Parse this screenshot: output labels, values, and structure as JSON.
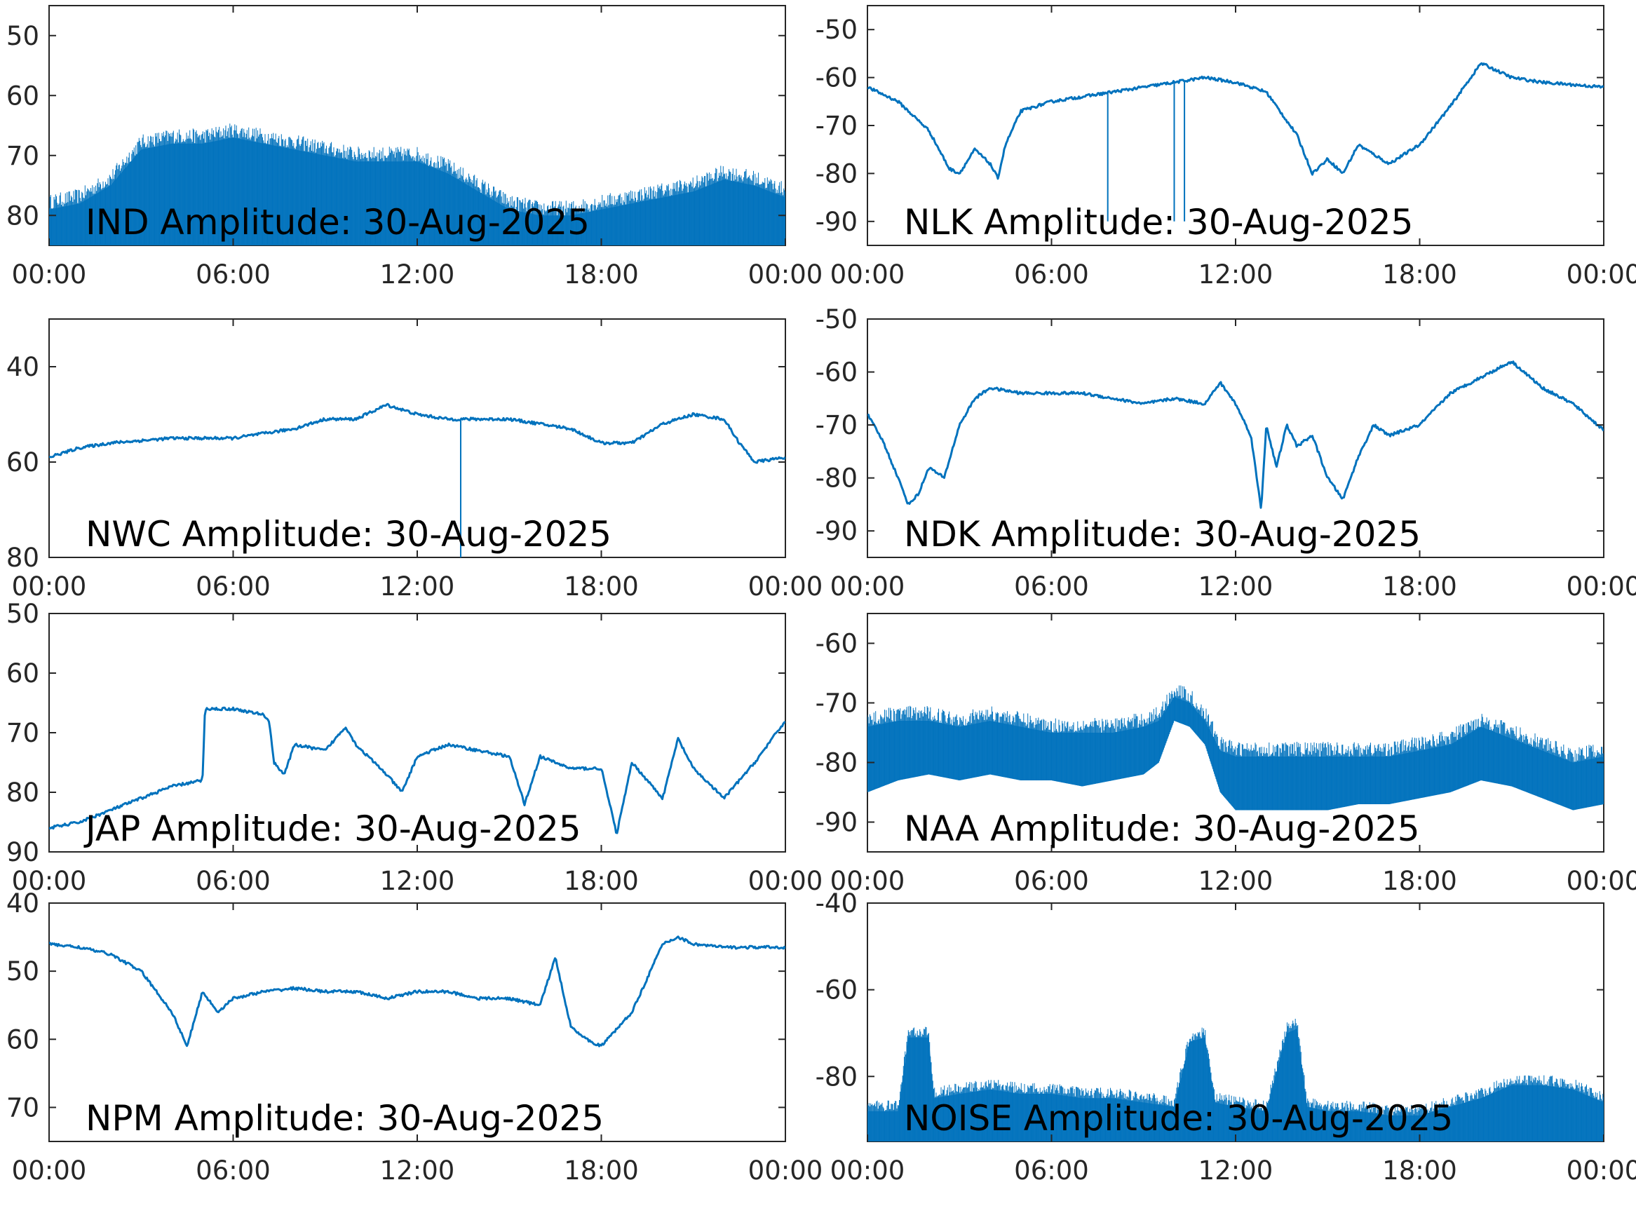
{
  "figure": {
    "line_color": "#0072BD",
    "axis_color": "#262626",
    "background": "#ffffff"
  },
  "chart_data": [
    {
      "type": "line",
      "title": "IND Amplitude: 30-Aug-2025",
      "x_ticks": [
        "00:00",
        "06:00",
        "12:00",
        "18:00",
        "00:00"
      ],
      "xlim": [
        "00:00",
        "24:00"
      ],
      "ylim": [
        -85,
        -45
      ],
      "y_ticks": [
        -50,
        -60,
        -70,
        -80
      ],
      "y_tick_labels": [
        "50",
        "60",
        "70",
        "80"
      ],
      "x": [
        "00:00",
        "01:00",
        "02:00",
        "03:00",
        "04:00",
        "05:00",
        "06:00",
        "07:00",
        "08:00",
        "09:00",
        "10:00",
        "11:00",
        "12:00",
        "13:00",
        "14:00",
        "15:00",
        "16:00",
        "17:00",
        "18:00",
        "19:00",
        "20:00",
        "21:00",
        "22:00",
        "23:00",
        "24:00"
      ],
      "y_upper": [
        -79,
        -78,
        -75,
        -69,
        -68,
        -68,
        -67,
        -68,
        -69,
        -70,
        -71,
        -71,
        -71,
        -73,
        -76,
        -79,
        -80,
        -80,
        -79,
        -78,
        -77,
        -76,
        -74,
        -75,
        -77
      ],
      "y_lower": [
        -85,
        -85,
        -85,
        -85,
        -85,
        -85,
        -85,
        -85,
        -85,
        -85,
        -85,
        -85,
        -85,
        -85,
        -85,
        -85,
        -85,
        -85,
        -85,
        -85,
        -85,
        -85,
        -85,
        -85,
        -85
      ],
      "grid": false
    },
    {
      "type": "line",
      "title": "NLK Amplitude: 30-Aug-2025",
      "x_ticks": [
        "00:00",
        "06:00",
        "12:00",
        "18:00",
        "00:00"
      ],
      "xlim": [
        "00:00",
        "24:00"
      ],
      "ylim": [
        -95,
        -45
      ],
      "y_ticks": [
        -50,
        -60,
        -70,
        -80,
        -90
      ],
      "y_tick_labels": [
        "-50",
        "-60",
        "-70",
        "-80",
        "-90"
      ],
      "x": [
        "00:00",
        "01:00",
        "02:00",
        "02:40",
        "03:00",
        "03:30",
        "04:00",
        "04:15",
        "04:30",
        "05:00",
        "06:00",
        "07:00",
        "08:00",
        "09:00",
        "10:00",
        "11:00",
        "12:00",
        "13:00",
        "14:00",
        "14:30",
        "15:00",
        "15:30",
        "16:00",
        "17:00",
        "18:00",
        "19:00",
        "20:00",
        "21:00",
        "22:00",
        "23:00",
        "24:00"
      ],
      "y": [
        -62,
        -65,
        -71,
        -79,
        -80,
        -75,
        -78,
        -81,
        -74,
        -67,
        -65,
        -64,
        -63,
        -62,
        -61,
        -60,
        -61,
        -63,
        -72,
        -80,
        -77,
        -80,
        -74,
        -78,
        -74,
        -66,
        -57,
        -60,
        -61,
        -61.5,
        -62
      ],
      "spikes": [
        {
          "x": "07:50",
          "y": -90
        },
        {
          "x": "10:00",
          "y": -90
        },
        {
          "x": "10:20",
          "y": -90
        }
      ],
      "grid": false
    },
    {
      "type": "line",
      "title": "NWC Amplitude: 30-Aug-2025",
      "x_ticks": [
        "00:00",
        "06:00",
        "12:00",
        "18:00",
        "00:00"
      ],
      "xlim": [
        "00:00",
        "24:00"
      ],
      "ylim": [
        -80,
        -30
      ],
      "y_ticks": [
        -40,
        -60,
        -80
      ],
      "y_tick_labels": [
        "40",
        "60",
        "80"
      ],
      "x": [
        "00:00",
        "01:00",
        "02:00",
        "03:00",
        "04:00",
        "05:00",
        "06:00",
        "07:00",
        "08:00",
        "09:00",
        "10:00",
        "11:00",
        "12:00",
        "13:00",
        "14:00",
        "15:00",
        "16:00",
        "17:00",
        "18:00",
        "19:00",
        "20:00",
        "21:00",
        "22:00",
        "22:30",
        "23:00",
        "24:00"
      ],
      "y": [
        -59,
        -57,
        -56,
        -55.5,
        -55,
        -55,
        -55,
        -54,
        -53,
        -51,
        -51,
        -48,
        -50,
        -51,
        -51,
        -51,
        -52,
        -53,
        -56,
        -56,
        -52,
        -50,
        -51,
        -56,
        -60,
        -59
      ],
      "spikes": [
        {
          "x": "13:25",
          "y": -80
        }
      ],
      "grid": false
    },
    {
      "type": "line",
      "title": "NDK Amplitude: 30-Aug-2025",
      "x_ticks": [
        "00:00",
        "06:00",
        "12:00",
        "18:00",
        "00:00"
      ],
      "xlim": [
        "00:00",
        "24:00"
      ],
      "ylim": [
        -95,
        -50
      ],
      "y_ticks": [
        -50,
        -60,
        -70,
        -80,
        -90
      ],
      "y_tick_labels": [
        "-50",
        "-60",
        "-70",
        "-80",
        "-90"
      ],
      "x": [
        "00:00",
        "00:30",
        "01:00",
        "01:20",
        "01:40",
        "02:00",
        "02:30",
        "03:00",
        "03:30",
        "04:00",
        "05:00",
        "06:00",
        "07:00",
        "08:00",
        "09:00",
        "10:00",
        "11:00",
        "11:30",
        "12:00",
        "12:30",
        "12:50",
        "13:00",
        "13:20",
        "13:40",
        "14:00",
        "14:30",
        "15:00",
        "15:30",
        "16:00",
        "16:30",
        "17:00",
        "18:00",
        "19:00",
        "20:00",
        "21:00",
        "22:00",
        "23:00",
        "24:00"
      ],
      "y": [
        -68,
        -73,
        -80,
        -85,
        -83,
        -78,
        -80,
        -70,
        -65,
        -63,
        -64,
        -64,
        -64,
        -65,
        -66,
        -65,
        -66,
        -62,
        -66,
        -72,
        -86,
        -70,
        -78,
        -70,
        -74,
        -72,
        -80,
        -84,
        -76,
        -70,
        -72,
        -70,
        -64,
        -61,
        -58,
        -63,
        -66,
        -71
      ],
      "grid": false
    },
    {
      "type": "line",
      "title": "JAP Amplitude: 30-Aug-2025",
      "x_ticks": [
        "00:00",
        "06:00",
        "12:00",
        "18:00",
        "00:00"
      ],
      "xlim": [
        "00:00",
        "24:00"
      ],
      "ylim": [
        -90,
        -50
      ],
      "y_ticks": [
        -50,
        -60,
        -70,
        -80,
        -90
      ],
      "y_tick_labels": [
        "50",
        "60",
        "70",
        "80",
        "90"
      ],
      "x": [
        "00:00",
        "01:00",
        "02:00",
        "03:00",
        "04:00",
        "05:00",
        "05:05",
        "06:00",
        "07:00",
        "07:10",
        "07:20",
        "07:40",
        "08:00",
        "09:00",
        "09:40",
        "10:00",
        "11:00",
        "11:30",
        "12:00",
        "13:00",
        "14:00",
        "15:00",
        "15:30",
        "16:00",
        "17:00",
        "18:00",
        "18:30",
        "19:00",
        "20:00",
        "20:30",
        "21:00",
        "22:00",
        "23:00",
        "24:00"
      ],
      "y": [
        -86,
        -85,
        -83,
        -81,
        -79,
        -78,
        -66,
        -66,
        -67,
        -68,
        -75,
        -77,
        -72,
        -73,
        -69,
        -72,
        -77,
        -80,
        -74,
        -72,
        -73,
        -74,
        -82,
        -74,
        -76,
        -76,
        -87,
        -75,
        -81,
        -71,
        -76,
        -81,
        -75,
        -68
      ],
      "grid": false
    },
    {
      "type": "line",
      "title": "NAA Amplitude: 30-Aug-2025",
      "x_ticks": [
        "00:00",
        "06:00",
        "12:00",
        "18:00",
        "00:00"
      ],
      "xlim": [
        "00:00",
        "24:00"
      ],
      "ylim": [
        -95,
        -55
      ],
      "y_ticks": [
        -60,
        -70,
        -80,
        -90
      ],
      "y_tick_labels": [
        "-60",
        "-70",
        "-80",
        "-90"
      ],
      "x": [
        "00:00",
        "01:00",
        "02:00",
        "03:00",
        "04:00",
        "05:00",
        "06:00",
        "07:00",
        "08:00",
        "09:00",
        "09:30",
        "10:00",
        "10:30",
        "11:00",
        "11:30",
        "12:00",
        "13:00",
        "14:00",
        "15:00",
        "16:00",
        "17:00",
        "18:00",
        "19:00",
        "20:00",
        "21:00",
        "22:00",
        "23:00",
        "24:00"
      ],
      "y_upper": [
        -74,
        -73,
        -73,
        -74,
        -73,
        -74,
        -75,
        -75,
        -75,
        -74,
        -73,
        -69,
        -70,
        -73,
        -78,
        -79,
        -79,
        -79,
        -79,
        -79,
        -79,
        -78,
        -77,
        -74,
        -76,
        -78,
        -80,
        -79
      ],
      "y_lower": [
        -85,
        -83,
        -82,
        -83,
        -82,
        -83,
        -83,
        -84,
        -83,
        -82,
        -80,
        -73,
        -74,
        -77,
        -85,
        -88,
        -88,
        -88,
        -88,
        -87,
        -87,
        -86,
        -85,
        -83,
        -84,
        -86,
        -88,
        -87
      ],
      "grid": false
    },
    {
      "type": "line",
      "title": "NPM Amplitude: 30-Aug-2025",
      "x_ticks": [
        "00:00",
        "06:00",
        "12:00",
        "18:00",
        "00:00"
      ],
      "xlim": [
        "00:00",
        "24:00"
      ],
      "ylim": [
        -75,
        -40
      ],
      "y_ticks": [
        -40,
        -50,
        -60,
        -70
      ],
      "y_tick_labels": [
        "40",
        "50",
        "60",
        "70"
      ],
      "x": [
        "00:00",
        "01:00",
        "02:00",
        "03:00",
        "04:00",
        "04:30",
        "05:00",
        "05:30",
        "06:00",
        "07:00",
        "08:00",
        "09:00",
        "10:00",
        "11:00",
        "12:00",
        "13:00",
        "14:00",
        "15:00",
        "16:00",
        "16:30",
        "17:00",
        "17:30",
        "18:00",
        "19:00",
        "20:00",
        "20:30",
        "21:00",
        "22:00",
        "23:00",
        "24:00"
      ],
      "y": [
        -46,
        -46.5,
        -47.5,
        -50,
        -56,
        -61,
        -53,
        -56,
        -54,
        -53,
        -52.5,
        -53,
        -53,
        -54,
        -53,
        -53,
        -54,
        -54,
        -55,
        -48,
        -58,
        -60,
        -61,
        -56,
        -46,
        -45,
        -46,
        -46.5,
        -46.5,
        -46.5
      ],
      "grid": false
    },
    {
      "type": "line",
      "title": "NOISE Amplitude: 30-Aug-2025",
      "x_ticks": [
        "00:00",
        "06:00",
        "12:00",
        "18:00",
        "00:00"
      ],
      "xlim": [
        "00:00",
        "24:00"
      ],
      "ylim": [
        -95,
        -40
      ],
      "y_ticks": [
        -40,
        -60,
        -80
      ],
      "y_tick_labels": [
        "-40",
        "-60",
        "-80"
      ],
      "x": [
        "00:00",
        "01:00",
        "01:20",
        "02:00",
        "02:10",
        "03:00",
        "04:00",
        "05:00",
        "06:00",
        "07:00",
        "08:00",
        "09:00",
        "10:00",
        "10:30",
        "11:00",
        "11:20",
        "12:00",
        "13:00",
        "13:40",
        "14:00",
        "14:20",
        "15:00",
        "16:00",
        "17:00",
        "18:00",
        "19:00",
        "20:00",
        "21:00",
        "22:00",
        "23:00",
        "24:00"
      ],
      "y_upper": [
        -88,
        -88,
        -71,
        -71,
        -85,
        -84,
        -83,
        -84,
        -84,
        -85,
        -85,
        -86,
        -87,
        -72,
        -71,
        -86,
        -87,
        -88,
        -70,
        -69,
        -87,
        -88,
        -88,
        -89,
        -89,
        -87,
        -85,
        -82,
        -82,
        -83,
        -86
      ],
      "y_lower": [
        -95,
        -95,
        -95,
        -95,
        -95,
        -95,
        -95,
        -95,
        -95,
        -95,
        -95,
        -95,
        -95,
        -95,
        -95,
        -95,
        -95,
        -95,
        -95,
        -95,
        -95,
        -95,
        -95,
        -95,
        -95,
        -95,
        -95,
        -95,
        -95,
        -95,
        -95
      ],
      "grid": false
    }
  ]
}
